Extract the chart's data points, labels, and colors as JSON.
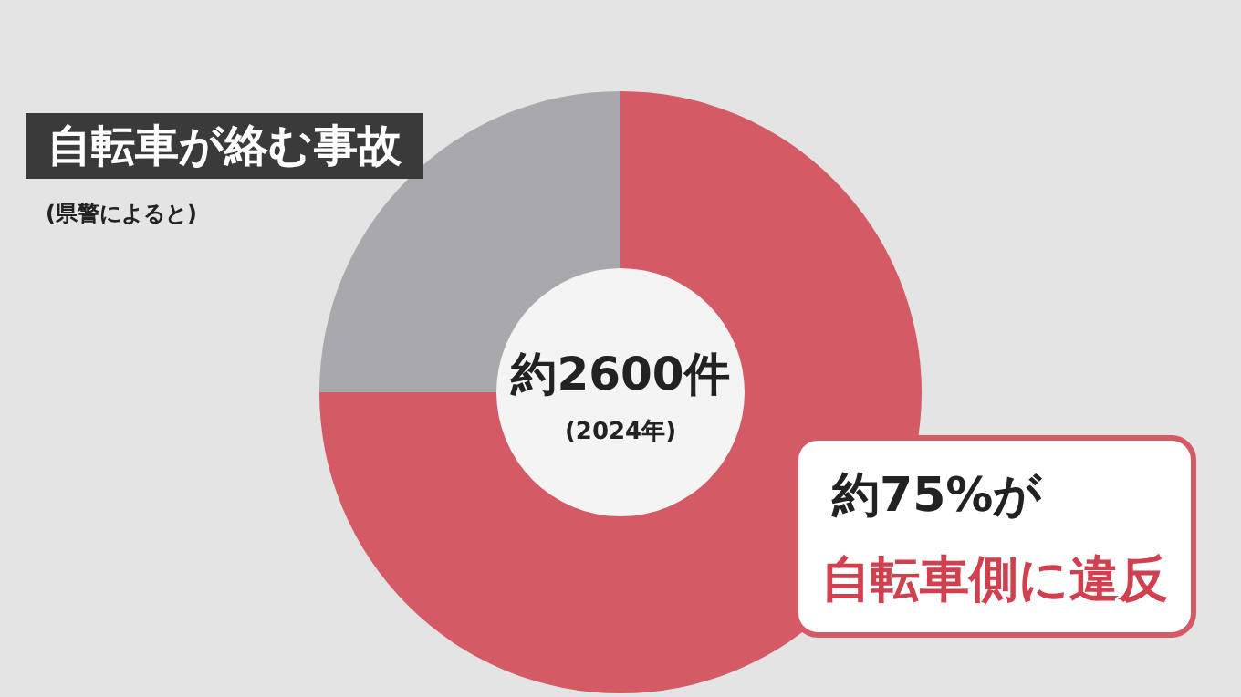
{
  "chart_data": {
    "type": "donut",
    "title": "自転車が絡む事故",
    "subtitle": "(県警によると)",
    "categories": [
      null,
      null
    ],
    "values": [
      75,
      25
    ],
    "colors": [
      "#d45a66",
      "#a9a9ad"
    ],
    "annotations": [
      "約2600件",
      "(2024年)",
      "約75%が",
      "自転車側に違反"
    ]
  }
}
